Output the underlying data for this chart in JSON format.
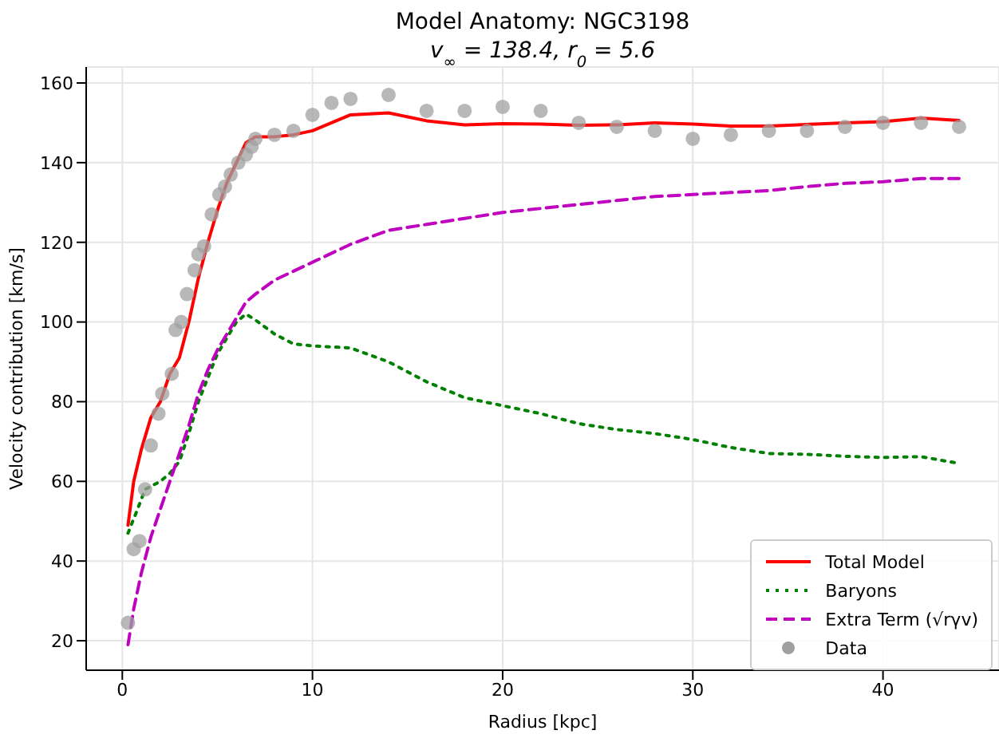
{
  "chart_data": {
    "type": "line",
    "title": "Model Anatomy: NGC3198",
    "subtitle": "v$_{∞}$ = 138.4, r$_{0}$ = 5.6",
    "xlabel": "Radius [kpc]",
    "ylabel": "Velocity contribution [km/s]",
    "xlim": [
      -1.9,
      46.1
    ],
    "xticks": [
      0,
      10,
      20,
      30,
      40
    ],
    "ylim": [
      12.6,
      164
    ],
    "yticks": [
      20,
      40,
      60,
      80,
      100,
      120,
      140,
      160
    ],
    "grid": true,
    "legend": "bottom right",
    "series": [
      {
        "name": "Total Model",
        "color": "#ff0000",
        "line_style": "solid",
        "marker": "none",
        "x": [
          0.3,
          0.6,
          1.0,
          1.5,
          2.0,
          2.5,
          3.0,
          3.5,
          4.0,
          4.5,
          5.0,
          5.5,
          6.0,
          6.5,
          7,
          8,
          9,
          10,
          12,
          14,
          16,
          18,
          20,
          22,
          24,
          26,
          28,
          30,
          32,
          34,
          36,
          38,
          40,
          42,
          44
        ],
        "values": [
          49,
          60,
          68,
          76,
          80,
          87,
          91,
          100,
          111,
          120,
          128,
          135,
          140,
          145,
          146.5,
          146.5,
          147,
          148,
          152,
          152.5,
          150.5,
          149.5,
          149.8,
          149.7,
          149.4,
          149.5,
          150,
          149.7,
          149.2,
          149.2,
          149.6,
          150,
          150.3,
          151.2,
          150.6
        ]
      },
      {
        "name": "Baryons",
        "color": "#008000",
        "line_style": "dotted",
        "marker": "none",
        "x": [
          0.3,
          0.8,
          1.2,
          2.0,
          2.5,
          3.0,
          3.5,
          4.0,
          4.5,
          5.0,
          5.5,
          6.0,
          6.5,
          7.0,
          8,
          9,
          10,
          12,
          14,
          16,
          18,
          20,
          22,
          24,
          26,
          28,
          30,
          32,
          34,
          36,
          38,
          40,
          42,
          44
        ],
        "values": [
          47,
          53,
          58,
          60,
          62,
          65,
          72,
          80,
          86,
          92,
          96,
          100,
          102,
          100.5,
          97,
          94.5,
          94,
          93.5,
          90,
          85,
          81,
          79,
          77,
          74.5,
          73,
          72,
          70.5,
          68.5,
          67,
          66.8,
          66.3,
          66,
          66.2,
          64.5
        ]
      },
      {
        "name": "Extra Term (√rγv)",
        "color": "#bf00bf",
        "line_style": "dashed",
        "marker": "none",
        "x": [
          0.3,
          0.6,
          1.0,
          1.5,
          2.0,
          2.5,
          3.0,
          3.5,
          4.0,
          4.5,
          5.0,
          5.5,
          6.0,
          6.5,
          7,
          8,
          10,
          12,
          14,
          16,
          18,
          20,
          22,
          24,
          26,
          28,
          30,
          32,
          34,
          36,
          38,
          40,
          42,
          44
        ],
        "values": [
          19,
          28,
          37,
          46,
          53,
          60,
          67,
          74,
          82,
          88,
          93,
          97,
          101,
          105,
          107,
          110.5,
          115,
          119.5,
          123,
          124.5,
          126,
          127.5,
          128.5,
          129.5,
          130.5,
          131.5,
          132,
          132.5,
          133,
          134,
          134.8,
          135.2,
          136,
          136
        ]
      },
      {
        "name": "Data",
        "type": "scatter",
        "color": "#a0a0a0",
        "marker": "circle",
        "x": [
          0.3,
          0.6,
          0.9,
          1.2,
          1.5,
          1.9,
          2.1,
          2.6,
          2.8,
          3.1,
          3.4,
          3.8,
          4.0,
          4.3,
          4.7,
          5.1,
          5.4,
          5.7,
          6.1,
          6.5,
          6.8,
          7.0,
          8,
          9,
          10,
          11,
          12,
          14,
          16,
          18,
          20,
          22,
          24,
          26,
          28,
          30,
          32,
          34,
          36,
          38,
          40,
          42,
          44
        ],
        "values": [
          24.5,
          43,
          45,
          58,
          69,
          77,
          82,
          87,
          98,
          100,
          107,
          113,
          117,
          119,
          127,
          132,
          134,
          137,
          140,
          142,
          144,
          146,
          147,
          148,
          152,
          155,
          156,
          157,
          153,
          153,
          154,
          153,
          150,
          149,
          148,
          146,
          147,
          148,
          148,
          149,
          150,
          150,
          149
        ]
      }
    ]
  }
}
